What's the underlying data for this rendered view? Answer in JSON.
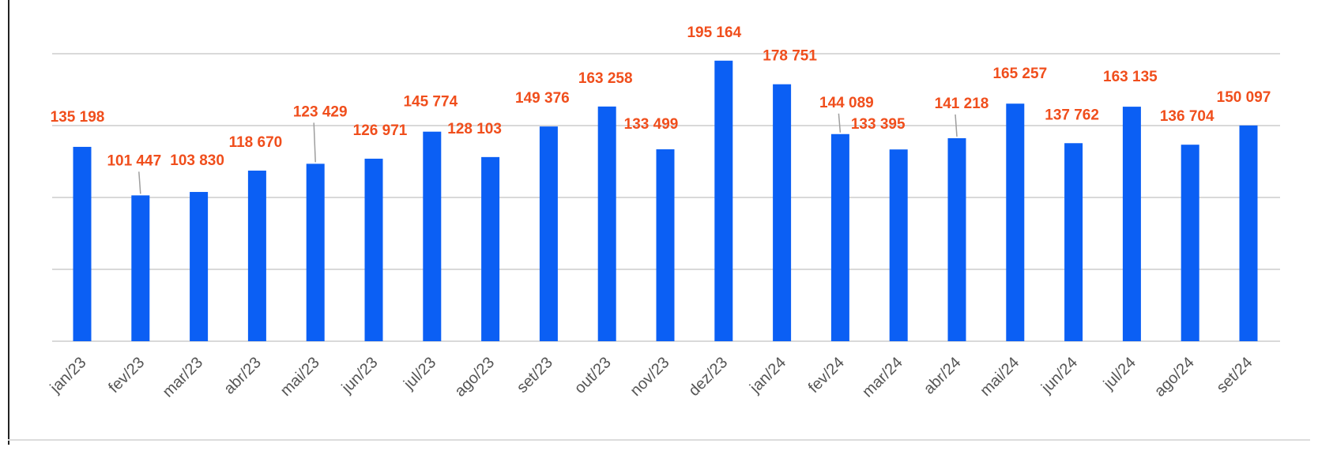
{
  "colors": {
    "bar": "#0b5ff4",
    "label": "#f04e1c",
    "grid": "#d9d9d9",
    "leader": "#9e9e9e",
    "tick": "#555555"
  },
  "chart_data": {
    "type": "bar",
    "title": "",
    "xlabel": "",
    "ylabel": "",
    "grid": true,
    "ylim": [
      0,
      200000
    ],
    "categories": [
      "jan/23",
      "fev/23",
      "mar/23",
      "abr/23",
      "mai/23",
      "jun/23",
      "jul/23",
      "ago/23",
      "set/23",
      "out/23",
      "nov/23",
      "dez/23",
      "jan/24",
      "fev/24",
      "mar/24",
      "abr/24",
      "mai/24",
      "jun/24",
      "jul/24",
      "ago/24",
      "set/24"
    ],
    "values": [
      135198,
      101447,
      103830,
      118670,
      123429,
      126971,
      145774,
      128103,
      149376,
      163258,
      133499,
      195164,
      178751,
      144089,
      133395,
      141218,
      165257,
      137762,
      163135,
      136704,
      150097
    ],
    "data_labels": [
      "135 198",
      "101 447",
      "103 830",
      "118 670",
      "123 429",
      "126 971",
      "145 774",
      "128 103",
      "149 376",
      "163 258",
      "133 499",
      "195 164",
      "178 751",
      "144 089",
      "133 395",
      "141 218",
      "165 257",
      "137 762",
      "163 135",
      "136 704",
      "150 097"
    ]
  }
}
